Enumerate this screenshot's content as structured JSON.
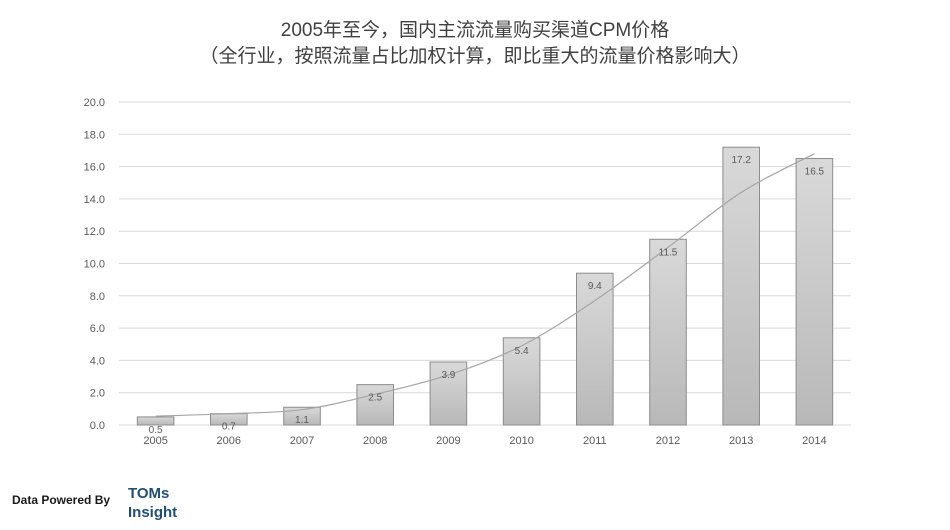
{
  "chart_data": {
    "type": "bar",
    "title": "2005年至今，国内主流流量购买渠道CPM价格",
    "subtitle": "（全行业，按照流量占比加权计算，即比重大的流量价格影响大）",
    "categories": [
      "2005",
      "2006",
      "2007",
      "2008",
      "2009",
      "2010",
      "2011",
      "2012",
      "2013",
      "2014"
    ],
    "values": [
      0.5,
      0.7,
      1.1,
      2.5,
      3.9,
      5.4,
      9.4,
      11.5,
      17.2,
      16.5
    ],
    "value_labels": [
      "0.5",
      "0.7",
      "1.1",
      "2.5",
      "3.9",
      "5.4",
      "9.4",
      "11.5",
      "17.2",
      "16.5"
    ],
    "trendline": {
      "type": "polynomial",
      "values": [
        0.55,
        0.7,
        0.95,
        1.9,
        3.1,
        4.9,
        7.7,
        11.0,
        14.4,
        16.8
      ]
    },
    "ylim": [
      0,
      20
    ],
    "yticks": [
      "0.0",
      "2.0",
      "4.0",
      "6.0",
      "8.0",
      "10.0",
      "12.0",
      "14.0",
      "16.0",
      "18.0",
      "20.0"
    ],
    "ytick_values": [
      0,
      2,
      4,
      6,
      8,
      10,
      12,
      14,
      16,
      18,
      20
    ],
    "xlabel": "",
    "ylabel": "",
    "grid": true,
    "legend": "none"
  },
  "colors": {
    "bar_top": "#d9d9d9",
    "bar_bottom": "#b8b8b8",
    "bar_border": "#8c8c8c",
    "gridline": "#d9d9d9",
    "trendline": "#a6a6a6",
    "text": "#595959",
    "brand": "#1f4e79"
  },
  "footer": {
    "label": "Data Powered By",
    "brand_line1": "TOMs",
    "brand_line2": "Insight"
  }
}
